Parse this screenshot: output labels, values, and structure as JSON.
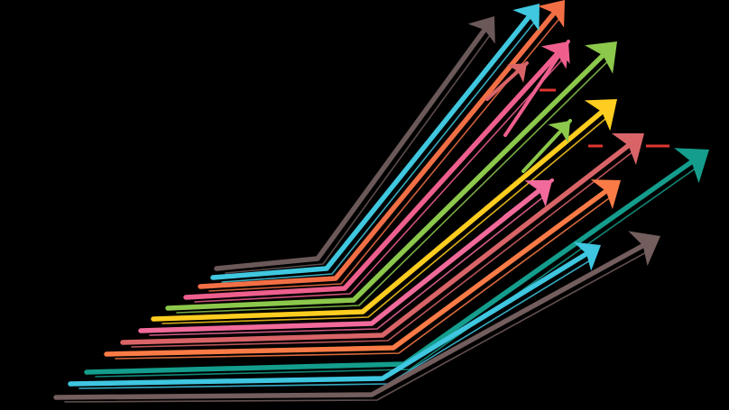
{
  "image": {
    "background": "#000000",
    "subject": "rising-arrows",
    "palette": [
      {
        "name": "dark-gray",
        "hex": "#6b5858"
      },
      {
        "name": "light-blue",
        "hex": "#3fc8df"
      },
      {
        "name": "orange",
        "hex": "#f26f45"
      },
      {
        "name": "pink",
        "hex": "#ee5f8d"
      },
      {
        "name": "light-green",
        "hex": "#8cc84b"
      },
      {
        "name": "yellow",
        "hex": "#ffcd1f"
      },
      {
        "name": "pink-2",
        "hex": "#f16a9b"
      },
      {
        "name": "dusty-red",
        "hex": "#d96468"
      },
      {
        "name": "orange-2",
        "hex": "#fb7b46"
      },
      {
        "name": "teal",
        "hex": "#149d8c"
      },
      {
        "name": "sky-blue",
        "hex": "#3fc6e0"
      },
      {
        "name": "brown-gray",
        "hex": "#735d5d"
      },
      {
        "name": "accent-red",
        "hex": "#e0352f"
      }
    ],
    "arrows": [
      {
        "color": "#6b5858",
        "icon": "arrow-icon"
      },
      {
        "color": "#3fc8df",
        "icon": "arrow-icon"
      },
      {
        "color": "#f26f45",
        "icon": "arrow-icon"
      },
      {
        "color": "#ee5f8d",
        "icon": "arrow-icon"
      },
      {
        "color": "#8cc84b",
        "icon": "arrow-icon"
      },
      {
        "color": "#ffcd1f",
        "icon": "arrow-icon"
      },
      {
        "color": "#f16a9b",
        "icon": "arrow-icon"
      },
      {
        "color": "#d96468",
        "icon": "arrow-icon"
      },
      {
        "color": "#fb7b46",
        "icon": "arrow-icon"
      },
      {
        "color": "#149d8c",
        "icon": "arrow-icon"
      },
      {
        "color": "#3fc6e0",
        "icon": "arrow-icon"
      },
      {
        "color": "#735d5d",
        "icon": "arrow-icon"
      }
    ]
  }
}
